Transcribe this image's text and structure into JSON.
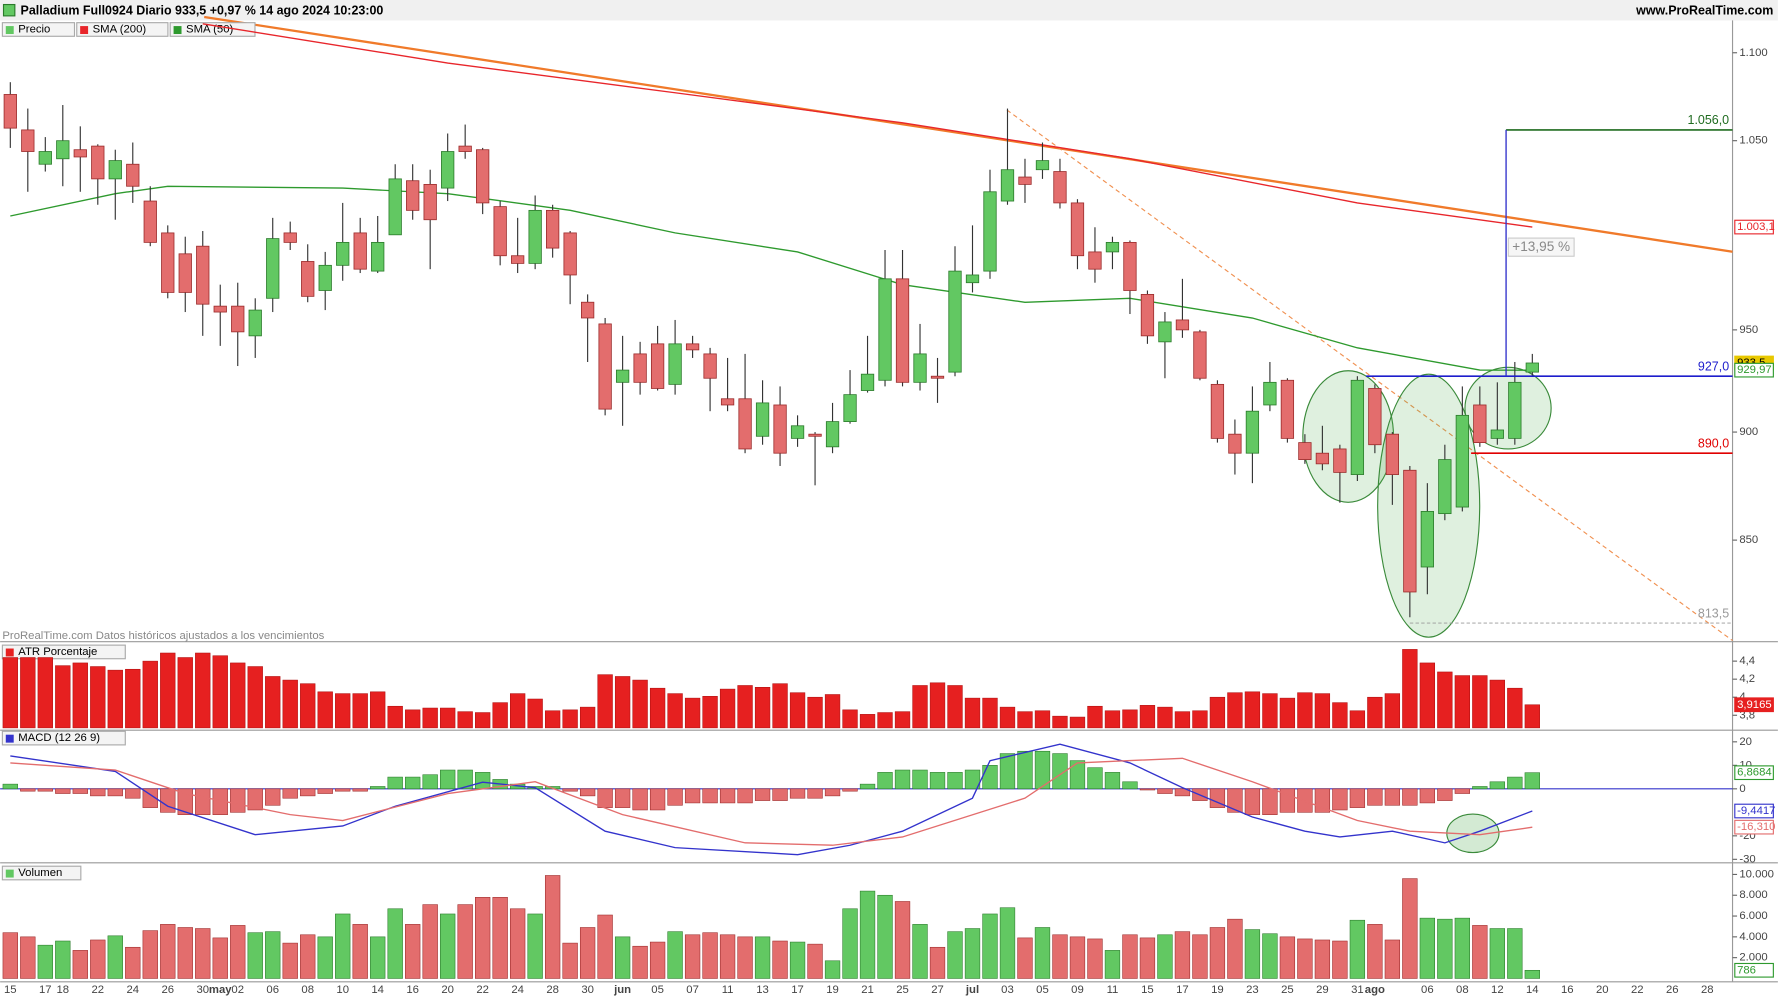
{
  "chart_data": [
    {
      "type": "candlestick",
      "title": "Palladium Full0924 Diario 933,5 +0,97 % 14 ago 2024 10:23:00",
      "source": "www.ProRealTime.com",
      "note": "ProRealTime.com Datos históricos ajustados a los vencimientos",
      "annotation": "+13,95 %",
      "categories": [
        "15",
        null,
        "17",
        "18",
        null,
        "22",
        null,
        "24",
        null,
        "26",
        null,
        "30",
        "may",
        "02",
        null,
        "06",
        null,
        "08",
        null,
        "10",
        null,
        "14",
        null,
        "16",
        null,
        "20",
        null,
        "22",
        null,
        "24",
        null,
        "28",
        null,
        "30",
        null,
        "jun",
        null,
        "05",
        null,
        "07",
        null,
        "11",
        null,
        "13",
        null,
        "17",
        null,
        "19",
        null,
        "21",
        null,
        "25",
        null,
        "27",
        null,
        "jul",
        null,
        "03",
        null,
        "05",
        null,
        "09",
        null,
        "11",
        null,
        "15",
        null,
        "17",
        null,
        "19",
        null,
        "23",
        null,
        "25",
        null,
        "29",
        null,
        "31",
        "ago",
        null,
        null,
        "06",
        null,
        "08",
        null,
        "12",
        null,
        "14",
        null,
        "16",
        null,
        "20",
        null,
        "22",
        null,
        "26",
        null,
        "28"
      ],
      "log_scale": true,
      "ylim": [
        806,
        1121
      ],
      "yticks": [
        {
          "value": 1100,
          "label": "1.100"
        },
        {
          "value": 1050,
          "label": "1.050"
        },
        950,
        900,
        850
      ],
      "candles": {
        "name": "Precio",
        "up_color": "#62c862",
        "down_color": "#e36d6d",
        "open": [
          1076,
          1056,
          1037,
          1040,
          1045,
          1047,
          1029,
          1037,
          1017,
          1000,
          989,
          993,
          962,
          962,
          947,
          966,
          1000,
          985,
          970,
          983,
          1000,
          980,
          999,
          1028,
          1026,
          1024,
          1047,
          1045,
          1014,
          988,
          984,
          1012,
          1000,
          964,
          953,
          924,
          938,
          943,
          923,
          943,
          938,
          916,
          916,
          898,
          913,
          897,
          899,
          893,
          905,
          920,
          925,
          976,
          924,
          927,
          929,
          974,
          980,
          1017,
          1030,
          1034,
          1033,
          1016,
          990,
          990,
          995,
          968,
          944,
          955,
          949,
          923,
          899,
          890,
          913,
          925,
          895,
          890,
          892,
          880,
          921,
          899,
          882,
          838,
          862,
          865,
          913,
          897,
          897,
          929
        ],
        "high": [
          1083,
          1068,
          1052,
          1070,
          1058,
          1048,
          1045,
          1049,
          1025,
          1004,
          998,
          1001,
          973,
          974,
          966,
          1008,
          1006,
          994,
          990,
          1016,
          1008,
          1009,
          1037,
          1037,
          1034,
          1054,
          1059,
          1046,
          1017,
          1008,
          1020,
          1015,
          1001,
          968,
          956,
          947,
          944,
          952,
          955,
          947,
          941,
          936,
          938,
          925,
          922,
          908,
          900,
          914,
          930,
          947,
          991,
          991,
          953,
          936,
          993,
          1004,
          1034,
          1068,
          1040,
          1049,
          1040,
          1018,
          1003,
          998,
          996,
          970,
          959,
          976,
          950,
          925,
          906,
          922,
          934,
          926,
          899,
          903,
          894,
          927,
          923,
          900,
          884,
          876,
          894,
          922,
          922,
          924,
          934,
          938
        ],
        "low": [
          1046,
          1022,
          1033,
          1025,
          1022,
          1015,
          1007,
          1016,
          993,
          966,
          959,
          947,
          942,
          932,
          936,
          959,
          991,
          964,
          960,
          975,
          979,
          979,
          999,
          1007,
          981,
          1017,
          1040,
          1010,
          983,
          979,
          981,
          987,
          963,
          934,
          908,
          903,
          918,
          920,
          918,
          936,
          910,
          910,
          890,
          894,
          884,
          893,
          875,
          890,
          904,
          919,
          922,
          922,
          920,
          914,
          927,
          969,
          976,
          1015,
          1016,
          1029,
          1013,
          981,
          974,
          981,
          958,
          943,
          926,
          946,
          925,
          895,
          880,
          876,
          910,
          895,
          885,
          882,
          867,
          877,
          890,
          866,
          816,
          826,
          859,
          863,
          893,
          894,
          894,
          927
        ],
        "close": [
          1057,
          1044,
          1044,
          1050,
          1041,
          1029,
          1039,
          1025,
          995,
          969,
          969,
          963,
          959,
          949,
          960,
          997,
          995,
          967,
          983,
          995,
          981,
          995,
          1029,
          1012,
          1007,
          1044,
          1044,
          1016,
          988,
          984,
          1012,
          992,
          978,
          956,
          911,
          930,
          924,
          921,
          943,
          940,
          926,
          913,
          892,
          914,
          890,
          903,
          898,
          905,
          918,
          928,
          976,
          924,
          938,
          926,
          980,
          978,
          1022,
          1034,
          1026,
          1039,
          1016,
          988,
          981,
          995,
          970,
          947,
          954,
          950,
          926,
          897,
          890,
          910,
          924,
          897,
          887,
          885,
          881,
          925,
          894,
          880,
          827,
          863,
          887,
          908,
          895,
          901,
          924,
          933.5
        ]
      },
      "series": [
        {
          "name": "SMA (200)",
          "color": "#e8262b",
          "x": [
            11,
            25,
            38,
            51,
            64,
            77,
            87
          ],
          "values": [
            1117,
            1094,
            1077,
            1060,
            1040,
            1016,
            1003.1
          ]
        },
        {
          "name": "SMA (50)",
          "color": "#2e9a2e",
          "x": [
            0,
            6,
            9,
            19,
            25,
            32,
            38,
            45,
            51,
            58,
            64,
            71,
            77,
            84,
            87
          ],
          "values": [
            1009,
            1021,
            1025,
            1024,
            1021,
            1012,
            1000,
            990,
            973,
            964,
            966,
            956,
            941,
            930,
            929.97
          ]
        }
      ],
      "levels": [
        {
          "value": 1056,
          "label": "1.056,0",
          "color": "#1f6b1f"
        },
        {
          "value": 927,
          "label": "927,0",
          "color": "#1d1dcc"
        },
        {
          "value": 890,
          "label": "890,0",
          "color": "#e00000"
        },
        {
          "value": 813.5,
          "label": "813,5",
          "color": "#999999"
        }
      ],
      "markers": [
        {
          "value": 1003.1,
          "label": "1.003,1",
          "color": "#e8262b"
        },
        {
          "value": 933.5,
          "label": "933,5",
          "color": "#e8c800"
        },
        {
          "value": 929.97,
          "label": "929,97",
          "color": "#2e9a2e"
        }
      ]
    },
    {
      "type": "bar",
      "title": "ATR Porcentaje",
      "color": "#e62020",
      "values": [
        4.44,
        4.44,
        4.44,
        4.35,
        4.38,
        4.34,
        4.3,
        4.31,
        4.4,
        4.49,
        4.44,
        4.49,
        4.46,
        4.38,
        4.34,
        4.23,
        4.19,
        4.15,
        4.06,
        4.04,
        4.04,
        4.06,
        3.9,
        3.86,
        3.88,
        3.88,
        3.84,
        3.83,
        3.94,
        4.04,
        3.98,
        3.85,
        3.86,
        3.89,
        4.25,
        4.23,
        4.19,
        4.1,
        4.04,
        3.99,
        4.01,
        4.09,
        4.13,
        4.11,
        4.15,
        4.05,
        4.0,
        4.03,
        3.86,
        3.81,
        3.83,
        3.84,
        4.13,
        4.16,
        4.13,
        3.99,
        3.99,
        3.89,
        3.84,
        3.85,
        3.79,
        3.78,
        3.9,
        3.85,
        3.86,
        3.91,
        3.89,
        3.84,
        3.85,
        4.0,
        4.05,
        4.06,
        4.04,
        3.99,
        4.05,
        4.04,
        3.94,
        3.85,
        4.0,
        4.04,
        4.53,
        4.38,
        4.28,
        4.24,
        4.24,
        4.19,
        4.1,
        3.9165
      ],
      "ylim": [
        3.66,
        4.59
      ],
      "yticks": [
        {
          "value": 4.4,
          "label": "4,4"
        },
        {
          "value": 4.2,
          "label": "4,2"
        },
        4,
        {
          "value": 3.8,
          "label": "3,8"
        }
      ],
      "markers": [
        {
          "value": 3.9165,
          "label": "3,9165",
          "color": "#e62020"
        }
      ]
    },
    {
      "type": "histogram",
      "title": "MACD (12 26 9)",
      "up_color": "#62c862",
      "down_color": "#e36d6d",
      "values": [
        2,
        -1,
        -1,
        -2,
        -2,
        -3,
        -3,
        -4,
        -8,
        -10,
        -11,
        -11,
        -11,
        -10,
        -9,
        -7,
        -4,
        -3,
        -2,
        -1,
        -1,
        1,
        5,
        5,
        6,
        8,
        8,
        7,
        4,
        2,
        1,
        1,
        -1,
        -3,
        -8,
        -8,
        -9,
        -9,
        -7,
        -6,
        -6,
        -6,
        -6,
        -5,
        -5,
        -4,
        -4,
        -3,
        -1,
        2,
        7,
        8,
        8,
        7,
        7,
        8,
        10,
        15,
        16,
        16,
        15,
        12,
        9,
        7,
        3,
        -0.5,
        -2,
        -3,
        -5,
        -8,
        -10,
        -11,
        -11,
        -10,
        -10,
        -10,
        -9,
        -8,
        -7,
        -7,
        -7,
        -6,
        -5,
        -2,
        1,
        3,
        5,
        6.8684
      ],
      "ylim": [
        -31,
        24
      ],
      "yticks": [
        20,
        10,
        0,
        -20,
        -30
      ],
      "series": [
        {
          "color": "#3333cc",
          "x": [
            0,
            6,
            9,
            14,
            19,
            22,
            27,
            30,
            34,
            38,
            45,
            48,
            51,
            55,
            56,
            60,
            64,
            67,
            71,
            74,
            76,
            79,
            82,
            84,
            87
          ],
          "values": [
            14,
            7.4,
            -7.4,
            -19.5,
            -15.8,
            -7.4,
            2.8,
            0.5,
            -18,
            -25,
            -28,
            -24,
            -18,
            -4,
            12,
            19,
            11,
            0.5,
            -12,
            -18,
            -20.5,
            -18,
            -23,
            -18,
            -9.4417
          ]
        },
        {
          "color": "#e36d6d",
          "x": [
            0,
            6,
            10,
            16,
            19,
            25,
            30,
            35,
            42,
            47,
            51,
            58,
            61,
            67,
            71,
            77,
            80,
            84,
            87
          ],
          "values": [
            11,
            8,
            -2,
            -11,
            -13.5,
            -2,
            3,
            -11,
            -23,
            -24,
            -20.5,
            -4,
            11,
            13,
            3,
            -13.5,
            -18,
            -19.5,
            -16.31
          ]
        }
      ],
      "markers": [
        {
          "value": 6.8684,
          "label": "6,8684",
          "color": "#2e9a2e"
        },
        {
          "value": -9.4417,
          "label": "-9,4417",
          "color": "#3333cc"
        },
        {
          "value": -16.31,
          "label": "-16,310",
          "color": "#e36d6d"
        }
      ]
    },
    {
      "type": "volume",
      "title": "Volumen",
      "up_color": "#62c862",
      "down_color": "#e36d6d",
      "values": [
        4400,
        4000,
        3200,
        3600,
        2700,
        3700,
        4100,
        3000,
        4600,
        5200,
        4900,
        4800,
        3900,
        5100,
        4400,
        4500,
        3400,
        4200,
        4000,
        6200,
        5200,
        4000,
        6700,
        5200,
        7100,
        6200,
        7100,
        7800,
        7800,
        6700,
        6200,
        9900,
        3400,
        4900,
        6100,
        4000,
        3100,
        3500,
        4500,
        4200,
        4400,
        4200,
        4000,
        4000,
        3600,
        3500,
        3300,
        1700,
        6700,
        8400,
        8000,
        7400,
        5200,
        3000,
        4500,
        4800,
        6200,
        6800,
        3900,
        4900,
        4200,
        4000,
        3800,
        2700,
        4200,
        3900,
        4200,
        4500,
        4200,
        4900,
        5700,
        4700,
        4300,
        4000,
        3800,
        3700,
        3600,
        5600,
        5200,
        3700,
        9600,
        5800,
        5700,
        5800,
        5100,
        4800,
        4800,
        786
      ],
      "ylim": [
        0,
        10900
      ],
      "yticks": [
        {
          "value": 10000,
          "label": "10.000"
        },
        {
          "value": 8000,
          "label": "8.000"
        },
        {
          "value": 6000,
          "label": "6.000"
        },
        {
          "value": 4000,
          "label": "4.000"
        },
        {
          "value": 2000,
          "label": "2.000"
        }
      ],
      "markers": [
        {
          "value": 786,
          "label": "786",
          "color": "#2e9a2e"
        }
      ]
    }
  ]
}
